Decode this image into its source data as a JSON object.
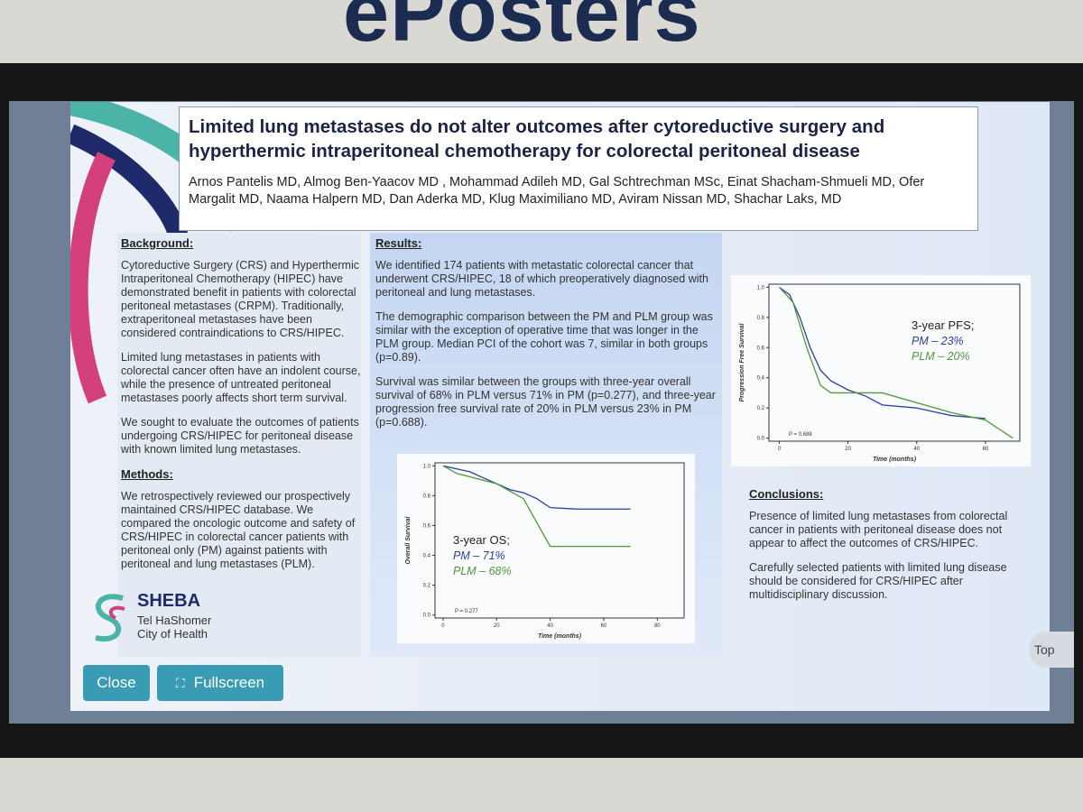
{
  "header": {
    "title": "ePosters"
  },
  "poster": {
    "title": "Limited lung metastases do not alter outcomes after cytoreductive surgery and hyperthermic intraperitoneal chemotherapy for colorectal peritoneal disease",
    "authors": "Arnos Pantelis MD, Almog Ben-Yaacov MD , Mohammad Adileh MD,  Gal Schtrechman MSc, Einat Shacham-Shmueli MD, Ofer Margalit MD, Naama Halpern MD, Dan Aderka MD, Klug Maximiliano MD, Aviram Nissan MD, Shachar Laks, MD",
    "background": {
      "heading": "Background:",
      "paragraphs": [
        "Cytoreductive Surgery (CRS) and Hyperthermic Intraperitoneal Chemotherapy (HIPEC) have demonstrated benefit in patients with colorectal peritoneal metastases (CRPM). Traditionally, extraperitoneal metastases have been considered contraindications to CRS/HIPEC.",
        "Limited lung metastases in patients with colorectal cancer often have an indolent course, while the presence of untreated peritoneal metastases poorly affects short term survival.",
        "We sought to evaluate the outcomes of patients undergoing CRS/HIPEC for peritoneal disease with known limited lung metastases."
      ]
    },
    "methods": {
      "heading": "Methods:",
      "paragraphs": [
        "We retrospectively reviewed our prospectively maintained CRS/HIPEC database.  We compared the oncologic outcome and safety of CRS/HIPEC in colorectal cancer patients with peritoneal only (PM) against patients with peritoneal and lung metastases (PLM)."
      ]
    },
    "results": {
      "heading": "Results:",
      "paragraphs": [
        "We identified 174 patients with metastatic colorectal cancer that underwent CRS/HIPEC, 18 of which preoperatively diagnosed with peritoneal and lung metastases.",
        "The demographic comparison between the PM and PLM group was similar with the exception of operative time that was longer in the PLM group. Median PCI of the cohort was 7, similar in both groups (p=0.89).",
        "Survival was similar between the groups with three-year overall survival of 68% in PLM versus 71% in PM (p=0.277), and three-year progression free survival rate of 20% in PLM versus 23% in PM (p=0.688)."
      ]
    },
    "conclusions": {
      "heading": "Conclusions:",
      "paragraphs": [
        "Presence of limited lung metastases from colorectal cancer in patients with peritoneal disease does not appear to affect the outcomes of CRS/HIPEC.",
        "Carefully selected patients with limited lung disease should be considered for CRS/HIPEC after multidisciplinary discussion."
      ]
    },
    "logo": {
      "name": "SHEBA",
      "lines": [
        "Tel HaShomer",
        "City of Health"
      ]
    },
    "os_chart": {
      "type": "line",
      "xlabel": "Time (months)",
      "ylabel": "Overall Survival",
      "legend_title": "3-year OS;",
      "p_label": "P = 0.277",
      "xlim": [
        -3,
        90
      ],
      "ylim": [
        -0.02,
        1.02
      ],
      "xticks": [
        0,
        20,
        40,
        60,
        80
      ],
      "yticks": [
        {
          "value": 0,
          "label": "0.0"
        },
        0.2,
        0.4,
        0.6,
        0.8,
        {
          "value": 1,
          "label": "1.0"
        }
      ],
      "series": [
        {
          "name": "PM – 71%",
          "color": "#2a3fa0",
          "x": [
            0,
            5,
            10,
            15,
            20,
            25,
            30,
            35,
            40,
            50,
            60,
            70
          ],
          "values": [
            1,
            0.98,
            0.96,
            0.92,
            0.88,
            0.84,
            0.82,
            0.78,
            0.72,
            0.71,
            0.71,
            0.71
          ]
        },
        {
          "name": "PLM – 68%",
          "color": "#4e9a3a",
          "x": [
            0,
            5,
            20,
            30,
            40,
            50,
            60,
            70
          ],
          "values": [
            1,
            0.95,
            0.88,
            0.78,
            0.46,
            0.46,
            0.46,
            0.46
          ]
        }
      ]
    },
    "pfs_chart": {
      "type": "line",
      "xlabel": "Time (months)",
      "ylabel": "Progression Free Survival",
      "legend_title": "3-year PFS;",
      "p_label": "P = 0.688",
      "xlim": [
        -3,
        70
      ],
      "ylim": [
        -0.02,
        1.02
      ],
      "xticks": [
        0,
        20,
        40,
        60
      ],
      "yticks": [
        {
          "value": 0,
          "label": "0.0"
        },
        0.2,
        0.4,
        0.6,
        0.8,
        {
          "value": 1,
          "label": "1.0"
        }
      ],
      "series": [
        {
          "name": "PM – 23%",
          "color": "#2a3fa0",
          "x": [
            0,
            3,
            6,
            9,
            12,
            15,
            20,
            25,
            30,
            40,
            50,
            60
          ],
          "values": [
            1,
            0.95,
            0.8,
            0.6,
            0.45,
            0.38,
            0.32,
            0.28,
            0.22,
            0.2,
            0.15,
            0.13
          ]
        },
        {
          "name": "PLM – 20%",
          "color": "#4e9a3a",
          "x": [
            0,
            4,
            8,
            12,
            15,
            30,
            50,
            60,
            68
          ],
          "values": [
            1,
            0.9,
            0.6,
            0.35,
            0.3,
            0.3,
            0.17,
            0.12,
            0
          ]
        }
      ]
    }
  },
  "buttons": {
    "close": "Close",
    "fullscreen": "Fullscreen",
    "top": "Top"
  }
}
